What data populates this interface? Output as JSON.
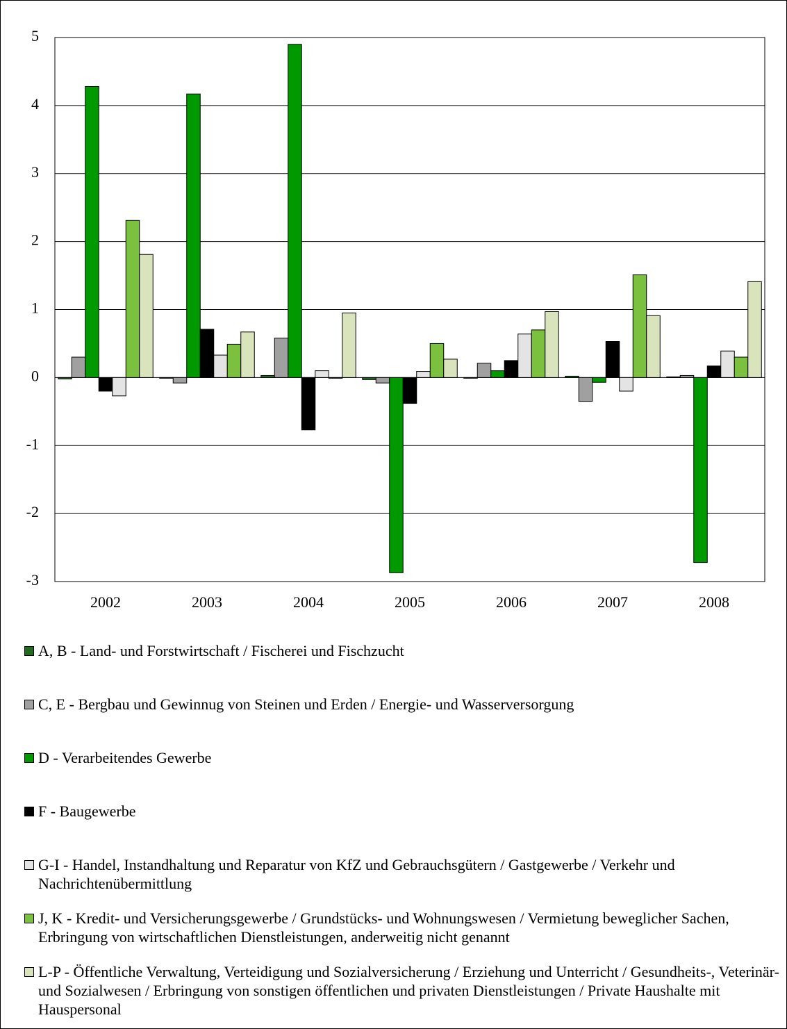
{
  "chart_data": {
    "type": "bar",
    "categories": [
      "2002",
      "2003",
      "2004",
      "2005",
      "2006",
      "2007",
      "2008"
    ],
    "series": [
      {
        "name": "A, B - Land- und Forstwirtschaft / Fischerei und Fischzucht",
        "color": "#216b21",
        "values": [
          -0.02,
          -0.01,
          0.03,
          -0.03,
          -0.01,
          0.02,
          0.01
        ]
      },
      {
        "name": "C, E - Bergbau und Gewinnug von Steinen und Erden / Energie- und Wasserversorgung",
        "color": "#a0a0a0",
        "values": [
          0.3,
          -0.08,
          0.58,
          -0.08,
          0.21,
          -0.35,
          0.03
        ]
      },
      {
        "name": "D - Verarbeitendes Gewerbe",
        "color": "#009a00",
        "values": [
          4.28,
          4.17,
          4.9,
          -2.87,
          0.1,
          -0.07,
          -2.72
        ]
      },
      {
        "name": "F - Baugewerbe",
        "color": "#000000",
        "values": [
          -0.2,
          0.71,
          -0.77,
          -0.38,
          0.25,
          0.53,
          0.17
        ]
      },
      {
        "name": "G-I - Handel, Instandhaltung und Reparatur von KfZ und Gebrauchsgütern / Gastgewerbe / Verkehr und Nachrichtenübermittlung",
        "color": "#e4e4e4",
        "values": [
          -0.27,
          0.33,
          0.1,
          0.09,
          0.64,
          -0.2,
          0.39
        ]
      },
      {
        "name": "J, K - Kredit- und Versicherungsgewerbe / Grundstücks- und Wohnungswesen / Vermietung beweglicher Sachen, Erbringung von wirtschaftlichen Dienstleistungen, anderweitig nicht genannt",
        "color": "#7cc040",
        "values": [
          2.31,
          0.49,
          -0.01,
          0.5,
          0.7,
          1.51,
          0.3
        ]
      },
      {
        "name": "L-P - Öffentliche Verwaltung, Verteidigung und Sozialversicherung / Erziehung und Unterricht / Gesundheits-, Veterinär- und Sozialwesen / Erbringung von sonstigen öffentlichen und privaten Dienstleistungen / Private Haushalte mit Hauspersonal",
        "color": "#d9e4bd",
        "values": [
          1.81,
          0.67,
          0.95,
          0.27,
          0.97,
          0.91,
          1.41
        ]
      }
    ],
    "ylim": [
      -3,
      5
    ],
    "yticks": [
      -3,
      -2,
      -1,
      0,
      1,
      2,
      3,
      4,
      5
    ],
    "grid": true
  }
}
